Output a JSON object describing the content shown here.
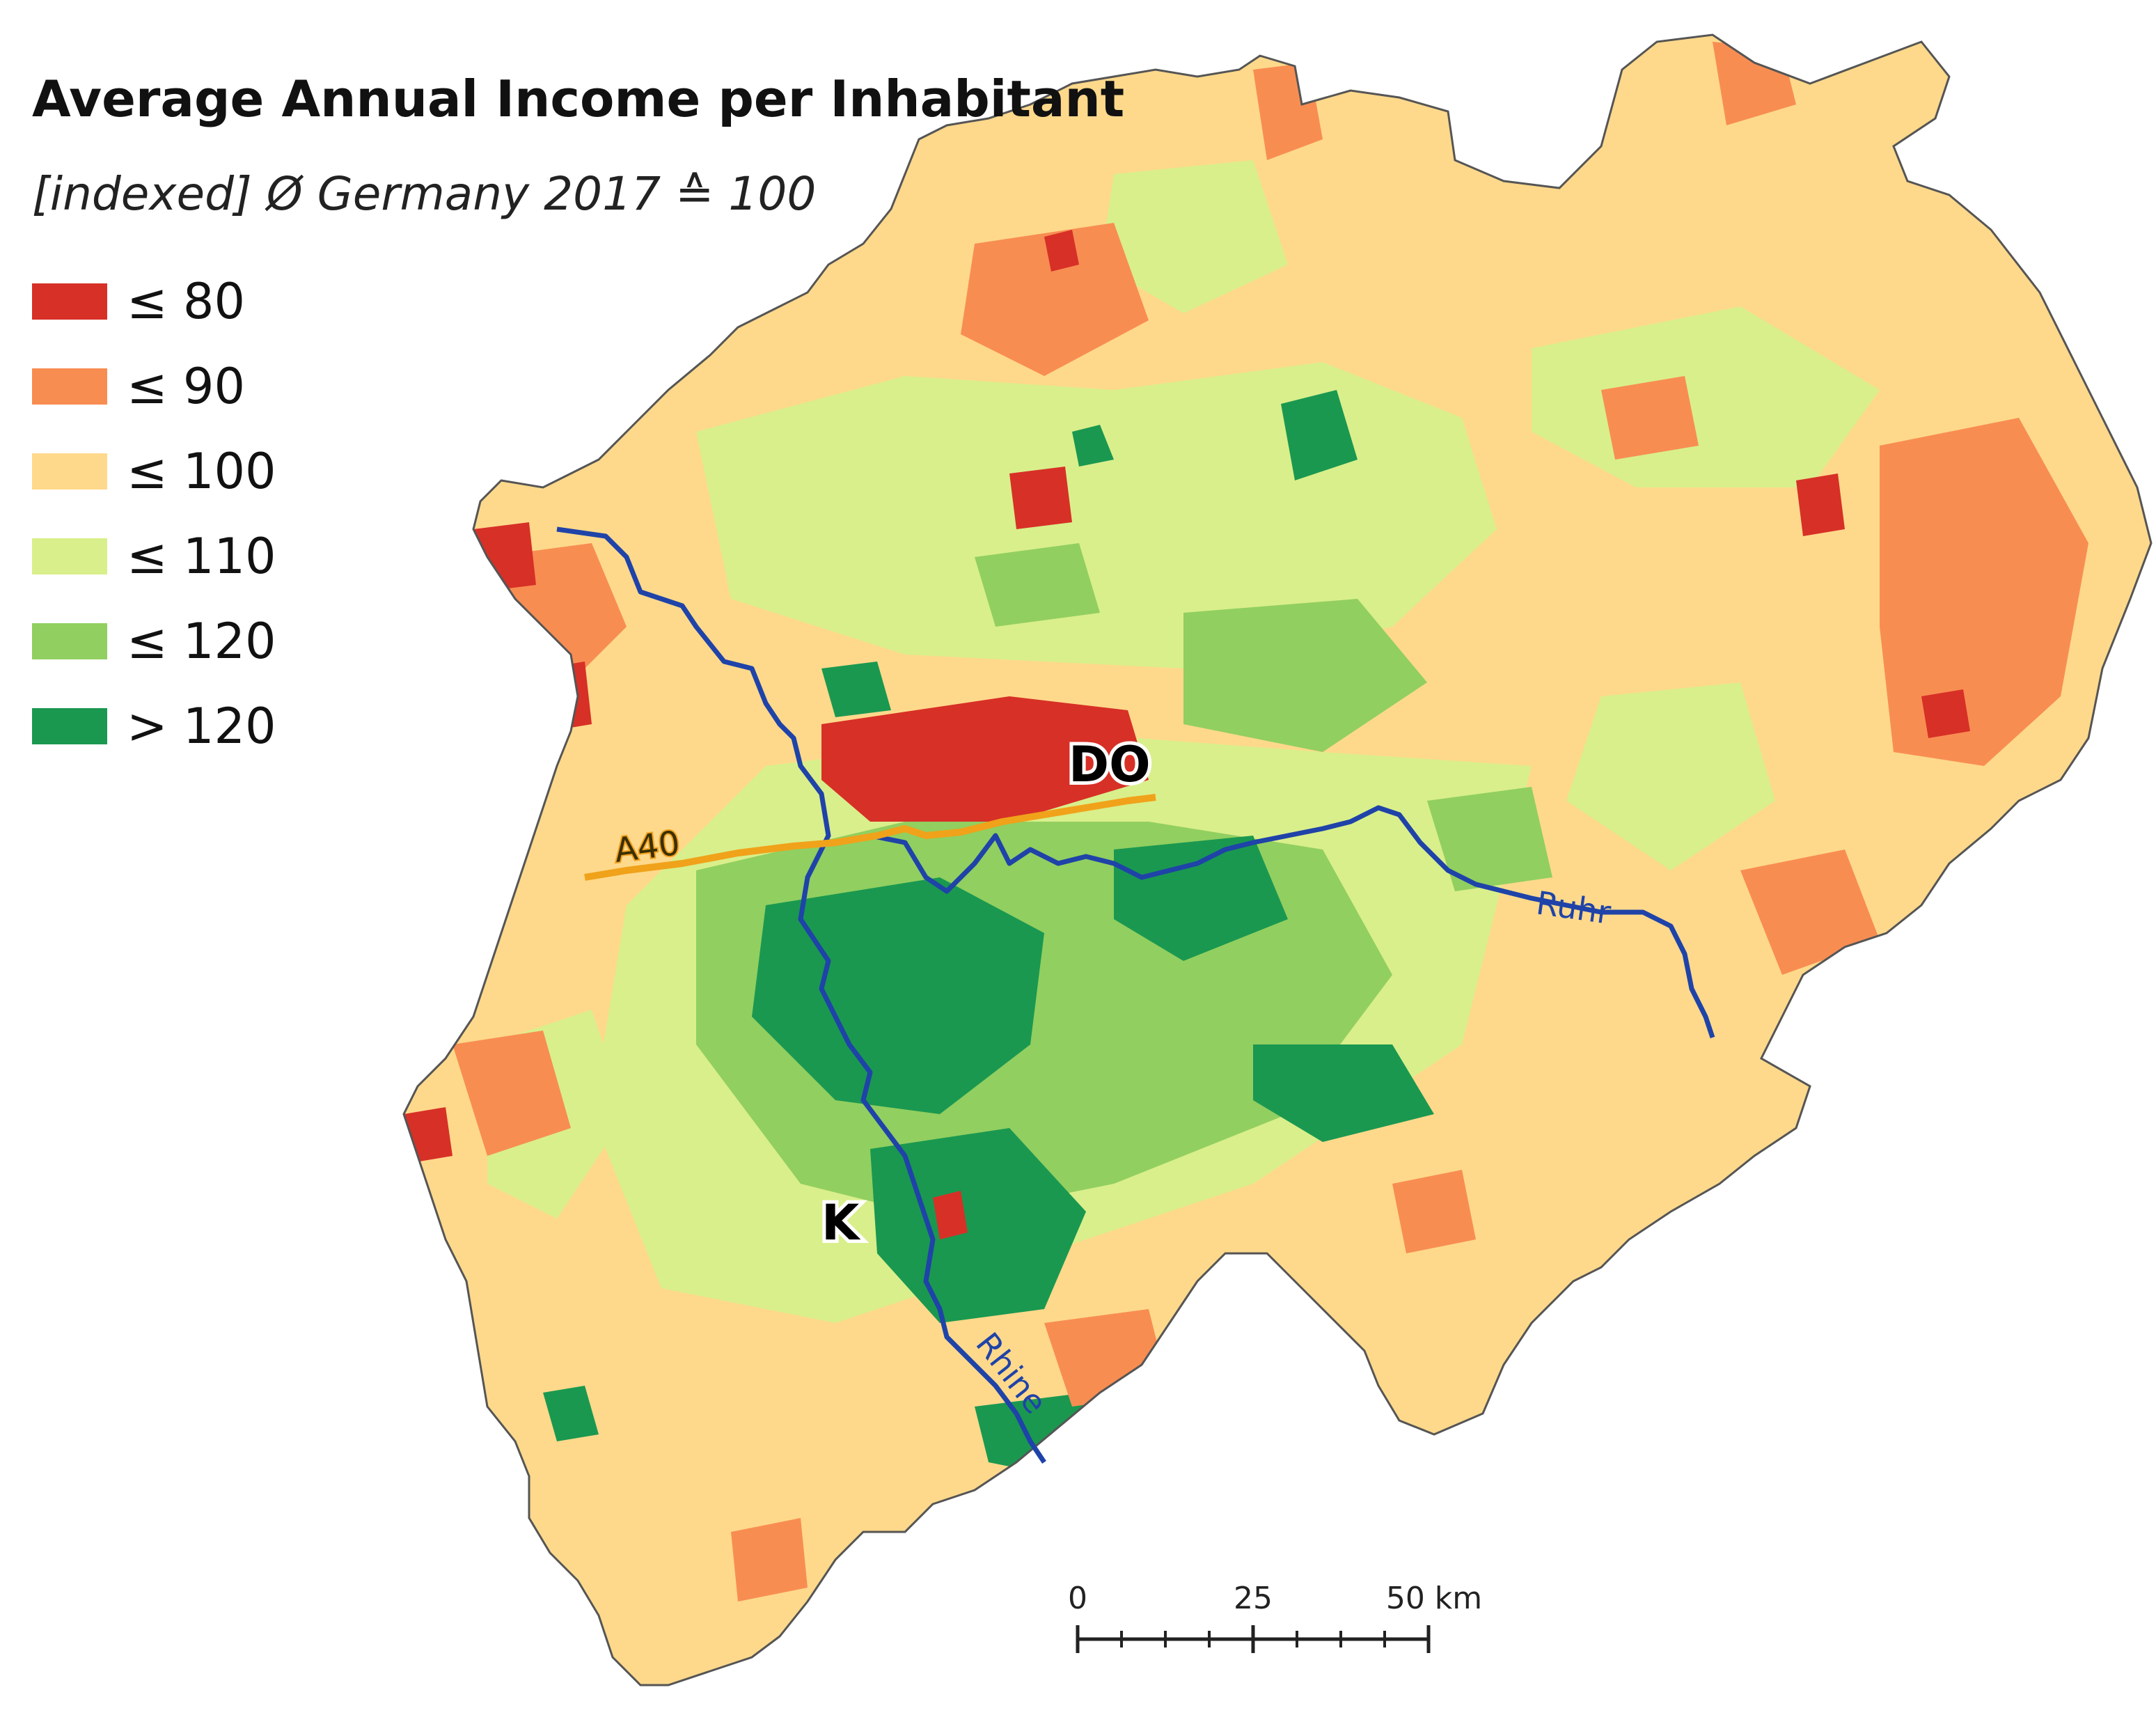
{
  "title": "Average Annual Income per Inhabitant",
  "subtitle": "[indexed] Ø Germany 2017 ≙ 100",
  "legend": [
    {
      "label": "≤ 80",
      "color": "#d73027"
    },
    {
      "label": "≤ 90",
      "color": "#f88d52"
    },
    {
      "label": "≤ 100",
      "color": "#fed98b"
    },
    {
      "label": "≤ 110",
      "color": "#d9ef8b"
    },
    {
      "label": "≤ 120",
      "color": "#91cf60"
    },
    {
      "label": "> 120",
      "color": "#1a9850"
    }
  ],
  "labels": {
    "city_dortmund": "DO",
    "city_koeln": "K",
    "highway": "A40",
    "river_rhine": "Rhine",
    "river_ruhr": "Ruhr"
  },
  "scale_bar": {
    "tick_0": "0",
    "tick_25": "25",
    "tick_50": "50 km"
  },
  "colors": {
    "rhine": "#1f43a8",
    "highway": "#f0a21a",
    "boundary": "#555555"
  }
}
